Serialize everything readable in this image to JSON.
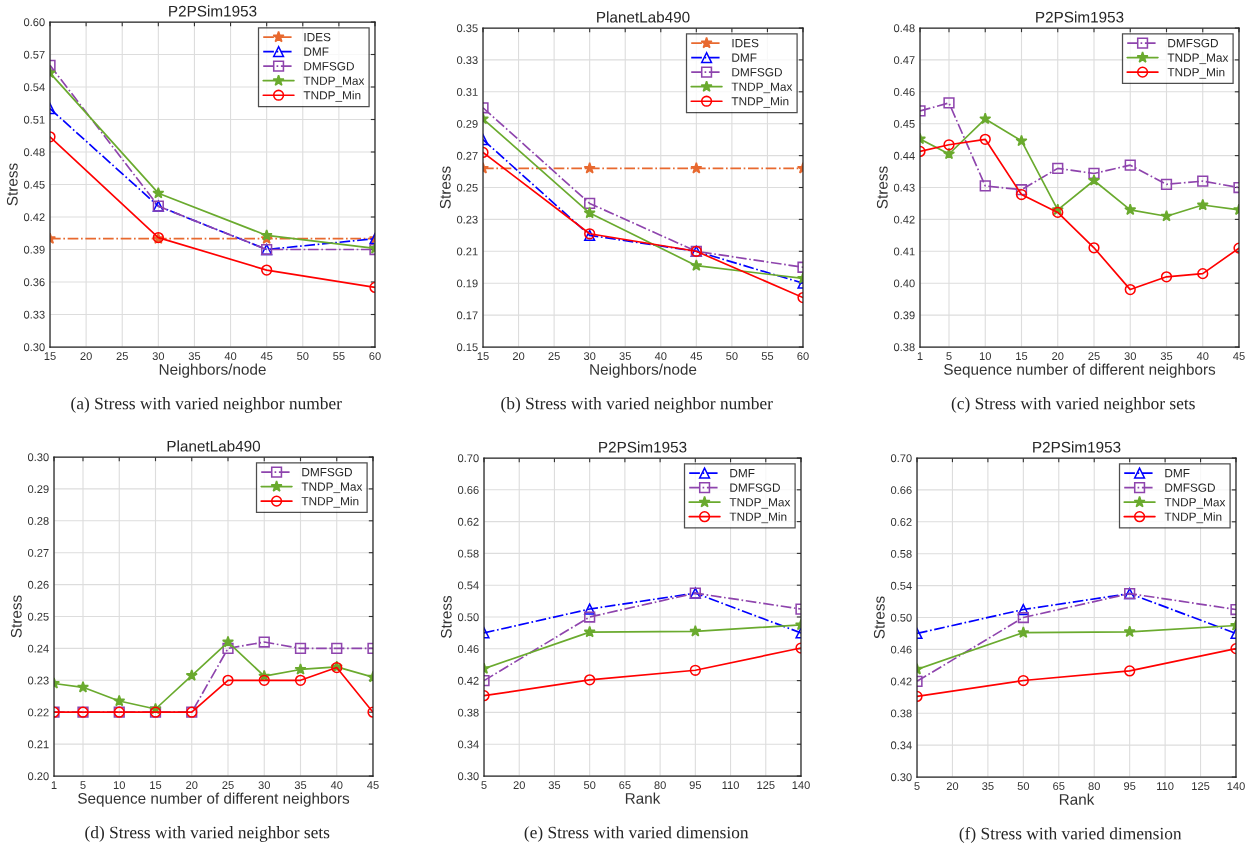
{
  "chart_data": [
    {
      "type": "line",
      "title": "P2PSim1953",
      "xlabel": "Neighbors/node",
      "ylabel": "Stress",
      "annotations": [
        "(a) Stress with varied neighbor number"
      ],
      "grid": true,
      "legend": "top right",
      "x": [
        15,
        30,
        45,
        60
      ],
      "xlim": [
        15,
        60
      ],
      "xticks": [
        15,
        20,
        25,
        30,
        35,
        40,
        45,
        50,
        55,
        60
      ],
      "ylim": [
        0.3,
        0.6
      ],
      "yticks": [
        {
          "value": 0.3,
          "label": "0.30"
        },
        0.33,
        0.36,
        0.39,
        0.42,
        0.45,
        0.48,
        0.51,
        0.54,
        0.57,
        {
          "value": 0.6,
          "label": "0.60"
        }
      ],
      "series": [
        {
          "name": "IDES",
          "color": "#e8692f",
          "marker": "star",
          "line_style": "dashdot",
          "values": [
            0.4,
            0.4,
            0.4,
            0.4
          ]
        },
        {
          "name": "DMF",
          "color": "#0000ff",
          "marker": "triangle",
          "line_style": "dashdot",
          "values": [
            0.52,
            0.43,
            0.39,
            0.4
          ]
        },
        {
          "name": "DMFSGD",
          "color": "#8e44ad",
          "marker": "square",
          "line_style": "dashdot",
          "values": [
            0.56,
            0.43,
            0.39,
            0.39
          ]
        },
        {
          "name": "TNDP_Max",
          "color": "#6aaa2e",
          "marker": "star",
          "line_style": "solid",
          "values": [
            0.553,
            0.442,
            0.403,
            0.391
          ]
        },
        {
          "name": "TNDP_Min",
          "color": "#ff0000",
          "marker": "circle",
          "line_style": "solid",
          "values": [
            0.494,
            0.401,
            0.371,
            0.355
          ]
        }
      ]
    },
    {
      "type": "line",
      "title": "PlanetLab490",
      "xlabel": "Neighbors/node",
      "ylabel": "Stress",
      "annotations": [
        "(b) Stress with varied neighbor number"
      ],
      "grid": true,
      "legend": "top right",
      "x": [
        15,
        30,
        45,
        60
      ],
      "xlim": [
        15,
        60
      ],
      "xticks": [
        15,
        20,
        25,
        30,
        35,
        40,
        45,
        50,
        55,
        60
      ],
      "ylim": [
        0.15,
        0.35
      ],
      "yticks": [
        0.15,
        0.17,
        0.19,
        0.21,
        0.23,
        0.25,
        0.27,
        0.29,
        0.31,
        0.33,
        0.35
      ],
      "series": [
        {
          "name": "IDES",
          "color": "#e8692f",
          "marker": "star",
          "line_style": "dashdot",
          "values": [
            0.262,
            0.262,
            0.262,
            0.262
          ]
        },
        {
          "name": "DMF",
          "color": "#0000ff",
          "marker": "triangle",
          "line_style": "dashdot",
          "values": [
            0.28,
            0.22,
            0.21,
            0.19
          ]
        },
        {
          "name": "DMFSGD",
          "color": "#8e44ad",
          "marker": "square",
          "line_style": "dashdot",
          "values": [
            0.3,
            0.24,
            0.21,
            0.2
          ]
        },
        {
          "name": "TNDP_Max",
          "color": "#6aaa2e",
          "marker": "star",
          "line_style": "solid",
          "values": [
            0.293,
            0.234,
            0.201,
            0.193
          ]
        },
        {
          "name": "TNDP_Min",
          "color": "#ff0000",
          "marker": "circle",
          "line_style": "solid",
          "values": [
            0.272,
            0.221,
            0.21,
            0.181
          ]
        }
      ]
    },
    {
      "type": "line",
      "title": "P2PSim1953",
      "xlabel": "Sequence number of different neighbors",
      "ylabel": "Stress",
      "annotations": [
        "(c) Stress with varied neighbor sets"
      ],
      "grid": true,
      "legend": "top right",
      "x": [
        1,
        5,
        10,
        15,
        20,
        25,
        30,
        35,
        40,
        45
      ],
      "xlim": [
        1,
        45
      ],
      "xticks": [
        1,
        5,
        10,
        15,
        20,
        25,
        30,
        35,
        40,
        45
      ],
      "ylim": [
        0.38,
        0.48
      ],
      "yticks": [
        0.38,
        0.39,
        {
          "value": 0.4,
          "label": "0.40"
        },
        0.41,
        0.42,
        0.43,
        0.44,
        0.45,
        0.46,
        0.47,
        0.48
      ],
      "series": [
        {
          "name": "DMFSGD",
          "color": "#8e44ad",
          "marker": "square",
          "line_style": "dashdot",
          "values": [
            0.454,
            0.4565,
            0.4305,
            0.4293,
            0.436,
            0.4344,
            0.437,
            0.431,
            0.432,
            0.43
          ]
        },
        {
          "name": "TNDP_Max",
          "color": "#6aaa2e",
          "marker": "star",
          "line_style": "solid",
          "values": [
            0.4452,
            0.4405,
            0.4515,
            0.4446,
            0.423,
            0.4322,
            0.423,
            0.421,
            0.4245,
            0.423
          ]
        },
        {
          "name": "TNDP_Min",
          "color": "#ff0000",
          "marker": "circle",
          "line_style": "solid",
          "values": [
            0.4413,
            0.4434,
            0.4451,
            0.4278,
            0.4222,
            0.4111,
            0.398,
            0.402,
            0.403,
            0.411
          ]
        }
      ]
    },
    {
      "type": "line",
      "title": "PlanetLab490",
      "xlabel": "Sequence number of different neighbors",
      "ylabel": "Stress",
      "annotations": [
        "(d) Stress with varied neighbor sets"
      ],
      "grid": true,
      "legend": "top right",
      "x": [
        1,
        5,
        10,
        15,
        20,
        25,
        30,
        35,
        40,
        45
      ],
      "xlim": [
        1,
        45
      ],
      "xticks": [
        1,
        5,
        10,
        15,
        20,
        25,
        30,
        35,
        40,
        45
      ],
      "ylim": [
        0.2,
        0.3
      ],
      "yticks": [
        {
          "value": 0.2,
          "label": "0.20"
        },
        0.21,
        0.22,
        0.23,
        0.24,
        0.25,
        0.26,
        0.27,
        0.28,
        0.29,
        {
          "value": 0.3,
          "label": "0.30"
        }
      ],
      "series": [
        {
          "name": "DMFSGD",
          "color": "#8e44ad",
          "marker": "square",
          "line_style": "dashdot",
          "values": [
            0.22,
            0.22,
            0.22,
            0.22,
            0.22,
            0.24,
            0.242,
            0.24,
            0.24,
            0.24
          ]
        },
        {
          "name": "TNDP_Max",
          "color": "#6aaa2e",
          "marker": "star",
          "line_style": "solid",
          "values": [
            0.229,
            0.2278,
            0.2235,
            0.221,
            0.2315,
            0.242,
            0.2313,
            0.2334,
            0.2342,
            0.231
          ]
        },
        {
          "name": "TNDP_Min",
          "color": "#ff0000",
          "marker": "circle",
          "line_style": "solid",
          "values": [
            0.22,
            0.22,
            0.22,
            0.22,
            0.22,
            0.23,
            0.23,
            0.23,
            0.234,
            0.22
          ]
        }
      ]
    },
    {
      "type": "line",
      "title": "P2PSim1953",
      "xlabel": "Rank",
      "ylabel": "Stress",
      "annotations": [
        "(e) Stress with varied dimension"
      ],
      "grid": true,
      "legend": "top right",
      "x": [
        5,
        50,
        95,
        140
      ],
      "xlim": [
        5,
        140
      ],
      "xticks": [
        5,
        20,
        35,
        50,
        65,
        80,
        95,
        110,
        125,
        140
      ],
      "ylim": [
        0.3,
        0.7
      ],
      "yticks": [
        {
          "value": 0.3,
          "label": "0.30"
        },
        0.34,
        0.38,
        0.42,
        0.46,
        {
          "value": 0.5,
          "label": "0.50"
        },
        0.54,
        0.58,
        0.62,
        0.66,
        {
          "value": 0.7,
          "label": "0.70"
        }
      ],
      "series": [
        {
          "name": "DMF",
          "color": "#0000ff",
          "marker": "triangle",
          "line_style": "dashdot",
          "values": [
            0.48,
            0.51,
            0.53,
            0.48
          ]
        },
        {
          "name": "DMFSGD",
          "color": "#8e44ad",
          "marker": "square",
          "line_style": "dashdot",
          "values": [
            0.42,
            0.5,
            0.53,
            0.51
          ]
        },
        {
          "name": "TNDP_Max",
          "color": "#6aaa2e",
          "marker": "star",
          "line_style": "solid",
          "values": [
            0.435,
            0.481,
            0.482,
            0.49
          ]
        },
        {
          "name": "TNDP_Min",
          "color": "#ff0000",
          "marker": "circle",
          "line_style": "solid",
          "values": [
            0.401,
            0.421,
            0.433,
            0.461
          ]
        }
      ]
    },
    {
      "type": "line",
      "title": "P2PSim1953",
      "xlabel": "Rank",
      "ylabel": "Stress",
      "annotations": [
        "(f) Stress with varied dimension"
      ],
      "grid": true,
      "legend": "top right",
      "x": [
        5,
        50,
        95,
        140
      ],
      "xlim": [
        5,
        140
      ],
      "xticks": [
        5,
        20,
        35,
        50,
        65,
        80,
        95,
        110,
        125,
        140
      ],
      "ylim": [
        0.3,
        0.7
      ],
      "yticks": [
        {
          "value": 0.3,
          "label": "0.30"
        },
        0.34,
        0.38,
        0.42,
        0.46,
        {
          "value": 0.5,
          "label": "0.50"
        },
        0.54,
        0.58,
        0.62,
        0.66,
        {
          "value": 0.7,
          "label": "0.70"
        }
      ],
      "series": [
        {
          "name": "DMF",
          "color": "#0000ff",
          "marker": "triangle",
          "line_style": "dashdot",
          "values": [
            0.48,
            0.51,
            0.53,
            0.48
          ]
        },
        {
          "name": "DMFSGD",
          "color": "#8e44ad",
          "marker": "square",
          "line_style": "dashdot",
          "values": [
            0.42,
            0.5,
            0.53,
            0.51
          ]
        },
        {
          "name": "TNDP_Max",
          "color": "#6aaa2e",
          "marker": "star",
          "line_style": "solid",
          "values": [
            0.435,
            0.481,
            0.482,
            0.49
          ]
        },
        {
          "name": "TNDP_Min",
          "color": "#ff0000",
          "marker": "circle",
          "line_style": "solid",
          "values": [
            0.401,
            0.421,
            0.433,
            0.461
          ]
        }
      ]
    }
  ]
}
